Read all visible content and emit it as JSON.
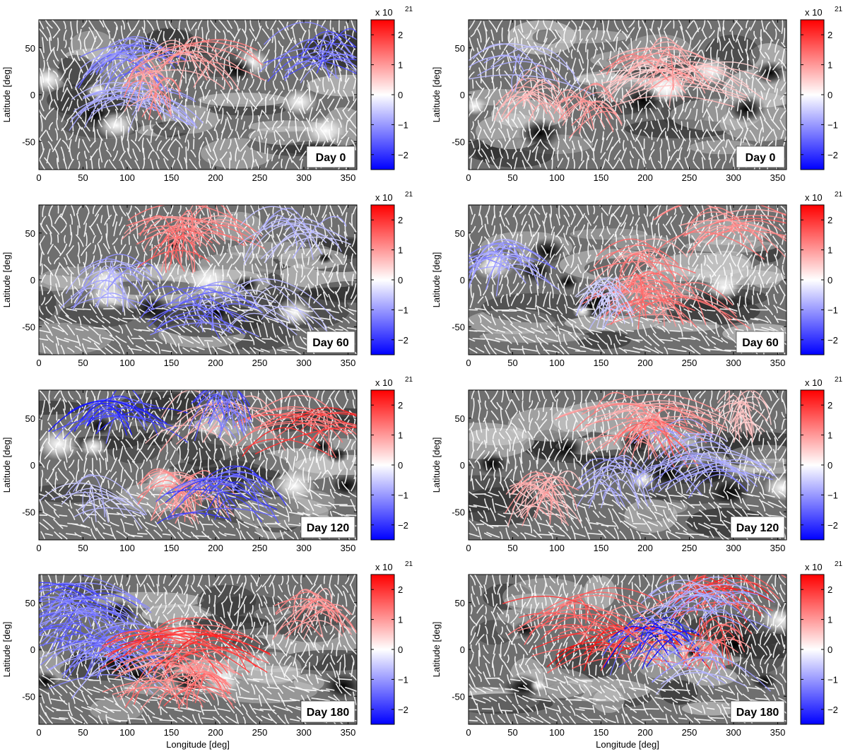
{
  "chart_data": {
    "type": "heatmap",
    "description_axes": {
      "xlabel": "Longitude [deg]",
      "ylabel": "Latitude [deg]",
      "xlim": [
        0,
        360
      ],
      "ylim": [
        -80,
        80
      ],
      "xticks": [
        0,
        50,
        100,
        150,
        200,
        250,
        300,
        350
      ],
      "yticks": [
        -50,
        0,
        50
      ]
    },
    "colorbar": {
      "exponent_label": "x 10",
      "exponent": "21",
      "ticks": [
        -2,
        -1,
        0,
        1,
        2
      ],
      "range": [
        -2.5,
        2.5
      ],
      "colors": {
        "low": "#0000ff",
        "mid": "#ffffff",
        "high": "#ff0000"
      }
    },
    "panels": [
      {
        "col": 0,
        "row": 0,
        "day_label": "Day 0"
      },
      {
        "col": 1,
        "row": 0,
        "day_label": "Day 0"
      },
      {
        "col": 0,
        "row": 1,
        "day_label": "Day 60"
      },
      {
        "col": 1,
        "row": 1,
        "day_label": "Day 60"
      },
      {
        "col": 0,
        "row": 2,
        "day_label": "Day 120"
      },
      {
        "col": 1,
        "row": 2,
        "day_label": "Day 120"
      },
      {
        "col": 0,
        "row": 3,
        "day_label": "Day 180"
      },
      {
        "col": 1,
        "row": 3,
        "day_label": "Day 180"
      }
    ]
  }
}
